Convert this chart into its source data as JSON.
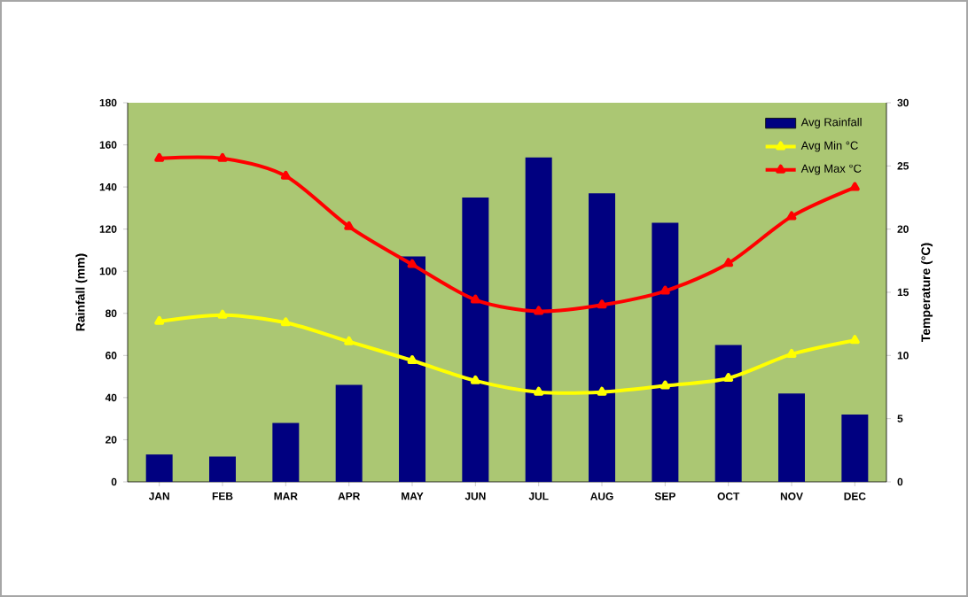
{
  "chart_data": {
    "type": "bar",
    "categories": [
      "JAN",
      "FEB",
      "MAR",
      "APR",
      "MAY",
      "JUN",
      "JUL",
      "AUG",
      "SEP",
      "OCT",
      "NOV",
      "DEC"
    ],
    "series": [
      {
        "name": "Avg Rainfall",
        "color": "#000080",
        "values": [
          13,
          12,
          28,
          46,
          107,
          135,
          154,
          137,
          123,
          65,
          42,
          32
        ]
      },
      {
        "name": "Avg Min °C",
        "type": "line",
        "axis": "y2",
        "color": "#ffff00",
        "values": [
          12.7,
          13.2,
          12.6,
          11.1,
          9.6,
          8.0,
          7.1,
          7.1,
          7.6,
          8.2,
          10.1,
          11.2
        ]
      },
      {
        "name": "Avg Max °C",
        "type": "line",
        "axis": "y2",
        "color": "#ff0000",
        "values": [
          25.6,
          25.6,
          24.2,
          20.2,
          17.2,
          14.4,
          13.5,
          14.0,
          15.1,
          17.3,
          21.0,
          23.3
        ]
      }
    ],
    "ylabel": "Rainfall (mm)",
    "y2label": "Temperature (°C)",
    "ylim": [
      0,
      180
    ],
    "yticks": [
      0,
      20,
      40,
      60,
      80,
      100,
      120,
      140,
      160,
      180
    ],
    "y2lim": [
      0,
      30
    ],
    "y2ticks": [
      0,
      5,
      10,
      15,
      20,
      25,
      30
    ],
    "grid": false,
    "legend": "top right",
    "marker": "triangle",
    "line_style": "solid"
  }
}
